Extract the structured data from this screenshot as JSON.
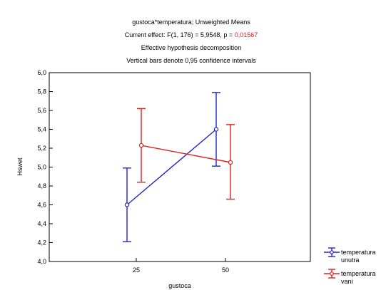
{
  "chart_data": {
    "type": "line",
    "title_lines": [
      "gustoca*temperatura; Unweighted Means",
      "Effective hypothesis decomposition",
      "Vertical bars denote 0,95 confidence intervals"
    ],
    "effect_prefix": "Current effect: F(1, 176) = 5,9548, p = ",
    "effect_p": "0,01567",
    "xlabel": "gustoca",
    "ylabel": "Hswet",
    "categories": [
      "25",
      "50"
    ],
    "ylim": [
      4.0,
      6.0
    ],
    "yticks": [
      "4,0",
      "4,2",
      "4,4",
      "4,6",
      "4,8",
      "5,0",
      "5,2",
      "5,4",
      "5,6",
      "5,8",
      "6,0"
    ],
    "grid": false,
    "legend_position": "bottom-right",
    "series": [
      {
        "name_lines": [
          "temperatura",
          "unutra"
        ],
        "color": "#2323cc",
        "values": [
          4.6,
          5.4
        ],
        "ci_lower": [
          4.21,
          5.01
        ],
        "ci_upper": [
          4.99,
          5.79
        ]
      },
      {
        "name_lines": [
          "temperatura",
          "vani"
        ],
        "color": "#e02020",
        "values": [
          5.23,
          5.05
        ],
        "ci_lower": [
          4.84,
          4.66
        ],
        "ci_upper": [
          5.62,
          5.45
        ]
      }
    ],
    "highlight_color": "#e02020"
  }
}
